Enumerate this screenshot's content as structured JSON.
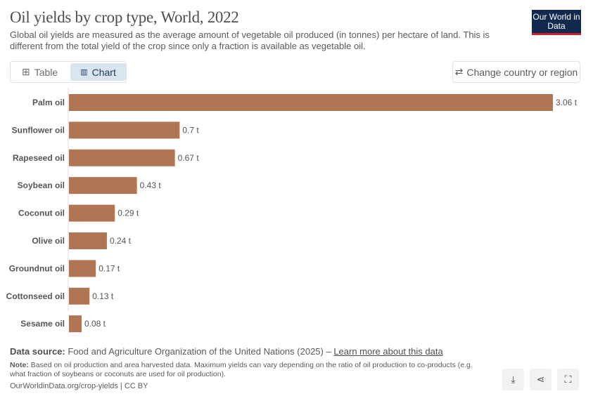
{
  "header": {
    "title": "Oil yields by crop type, World, 2022",
    "subtitle": "Global oil yields are measured as the average amount of vegetable oil produced (in tonnes) per hectare of land. This is different from the total yield of the crop since only a fraction is available as vegetable oil.",
    "logo": "Our World in Data"
  },
  "tabs": [
    {
      "label": "Table",
      "icon": "table-icon"
    },
    {
      "label": "Chart",
      "icon": "bar-chart-icon",
      "active": true
    }
  ],
  "change_region": "Change country or region",
  "chart_data": {
    "type": "bar",
    "orientation": "horizontal",
    "categories": [
      "Palm oil",
      "Sunflower oil",
      "Rapeseed oil",
      "Soybean oil",
      "Coconut oil",
      "Olive oil",
      "Groundnut oil",
      "Cottonseed oil",
      "Sesame oil"
    ],
    "values": [
      3.06,
      0.7,
      0.67,
      0.43,
      0.29,
      0.24,
      0.17,
      0.13,
      0.08
    ],
    "labels": [
      "3.06 t",
      "0.7 t",
      "0.67 t",
      "0.43 t",
      "0.29 t",
      "0.24 t",
      "0.17 t",
      "0.13 t",
      "0.08 t"
    ],
    "unit": "t",
    "xlim": [
      0,
      3.06
    ],
    "grid": false,
    "color": "#b07654"
  },
  "footer": {
    "source_label": "Data source:",
    "source_text": " Food and Agriculture Organization of the United Nations (2025) – ",
    "source_link": "Learn more about this data",
    "note_label": "Note:",
    "note_text": " Based on oil production and area harvested data. Maximum yields can vary depending on the ratio of oil production to co-products (e.g. what fraction of soybeans or coconuts are used for oil production).",
    "url": "OurWorldinData.org/crop-yields | CC BY"
  }
}
